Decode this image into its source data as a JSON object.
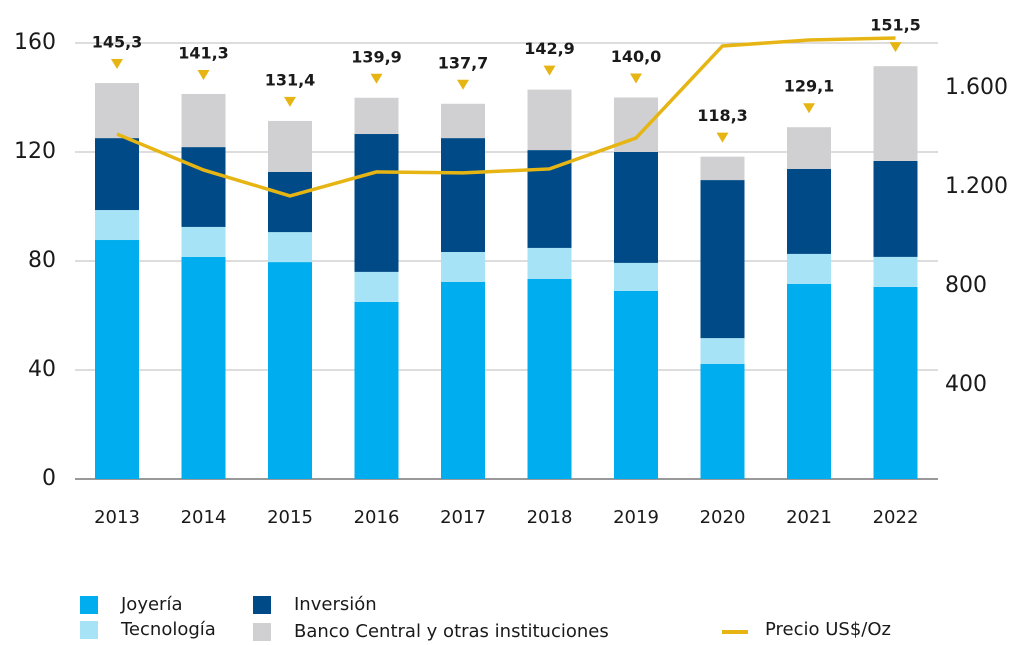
{
  "chart_data": {
    "type": "bar",
    "categories": [
      "2013",
      "2014",
      "2015",
      "2016",
      "2017",
      "2018",
      "2019",
      "2020",
      "2021",
      "2022"
    ],
    "series": [
      {
        "name": "Joyería",
        "color": "#00aeef",
        "values": [
          87.7,
          81.5,
          79.6,
          65.0,
          72.3,
          73.4,
          69.0,
          42.2,
          71.6,
          70.5
        ]
      },
      {
        "name": "Tecnología",
        "color": "#a6e3f7",
        "values": [
          11.0,
          11.0,
          11.0,
          11.0,
          11.0,
          11.4,
          10.3,
          9.5,
          11.0,
          11.0
        ]
      },
      {
        "name": "Inversión",
        "color": "#004b87",
        "values": [
          26.4,
          29.3,
          22.1,
          50.6,
          41.8,
          35.9,
          40.7,
          58.0,
          31.2,
          35.2
        ]
      },
      {
        "name": "Banco Central y otras instituciones",
        "color": "#d0d0d2",
        "values": [
          20.2,
          19.5,
          18.7,
          13.3,
          12.6,
          22.2,
          20.0,
          8.6,
          15.3,
          34.8
        ]
      },
      {
        "name": "Precio US$/Oz",
        "color": "#e6b514",
        "axis": "y2",
        "type": "line",
        "values": [
          1414,
          1269,
          1164,
          1261,
          1257,
          1273,
          1398,
          1770,
          1794,
          1802
        ]
      }
    ],
    "totals": [
      145.3,
      141.3,
      131.4,
      139.9,
      137.7,
      142.9,
      140.0,
      118.3,
      129.1,
      151.5
    ],
    "total_labels": [
      "145,3",
      "141,3",
      "131,4",
      "139,9",
      "137,7",
      "142,9",
      "140,0",
      "118,3",
      "129,1",
      "151,5"
    ],
    "ylim": [
      0,
      160
    ],
    "yticks": [
      0,
      40,
      80,
      120,
      160
    ],
    "y2lim": [
      20,
      1782
    ],
    "y2ticks": [
      400,
      800,
      {
        "value": 1200,
        "label": "1.200"
      },
      {
        "value": 1600,
        "label": "1.600"
      }
    ],
    "grid": true
  }
}
